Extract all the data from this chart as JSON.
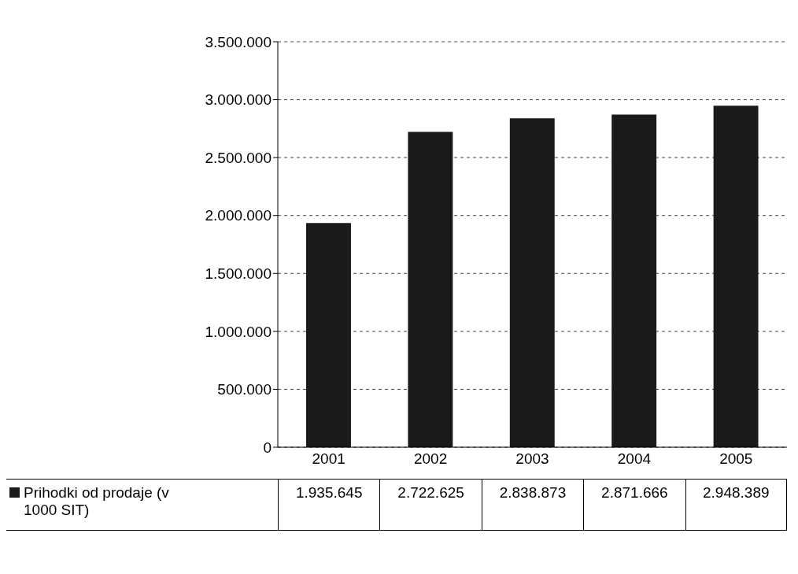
{
  "chart_data": {
    "type": "bar",
    "categories": [
      "2001",
      "2002",
      "2003",
      "2004",
      "2005"
    ],
    "series": [
      {
        "name": "Prihodki od prodaje (v 1000 SIT)",
        "color": "#1a1a1a",
        "values": [
          1935645,
          2722625,
          2838873,
          2871666,
          2948389
        ],
        "value_labels": [
          "1.935.645",
          "2.722.625",
          "2.838.873",
          "2.871.666",
          "2.948.389"
        ]
      }
    ],
    "ylim": [
      0,
      3500000
    ],
    "yticks": [
      {
        "value": 0,
        "label": "0"
      },
      {
        "value": 500000,
        "label": "500.000"
      },
      {
        "value": 1000000,
        "label": "1.000.000"
      },
      {
        "value": 1500000,
        "label": "1.500.000"
      },
      {
        "value": 2000000,
        "label": "2.000.000"
      },
      {
        "value": 2500000,
        "label": "2.500.000"
      },
      {
        "value": 3000000,
        "label": "3.000.000"
      },
      {
        "value": 3500000,
        "label": "3.500.000"
      }
    ],
    "grid": "y",
    "legend": "bottom"
  }
}
